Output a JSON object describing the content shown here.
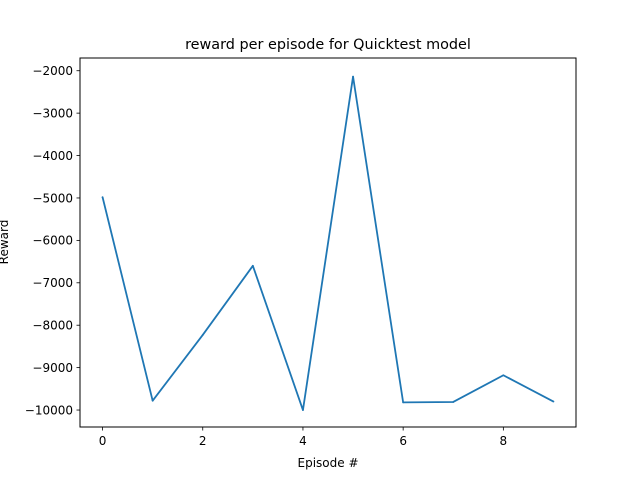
{
  "chart_data": {
    "type": "line",
    "title": "reward per episode for Quicktest model",
    "xlabel": "Episode #",
    "ylabel": "Reward",
    "xlim": [
      -0.45,
      9.45
    ],
    "ylim": [
      -10400,
      -1700
    ],
    "xticks": [
      0,
      2,
      4,
      6,
      8
    ],
    "yticks": [
      -10000,
      -9000,
      -8000,
      -7000,
      -6000,
      -5000,
      -4000,
      -3000,
      -2000
    ],
    "grid": false,
    "series": [
      {
        "color": "#1f77b4",
        "x": [
          0,
          1,
          2,
          3,
          4,
          5,
          6,
          7,
          8,
          9
        ],
        "y": [
          -4980,
          -9780,
          -8230,
          -6600,
          -10000,
          -2140,
          -9820,
          -9810,
          -9180,
          -9800
        ]
      }
    ]
  }
}
